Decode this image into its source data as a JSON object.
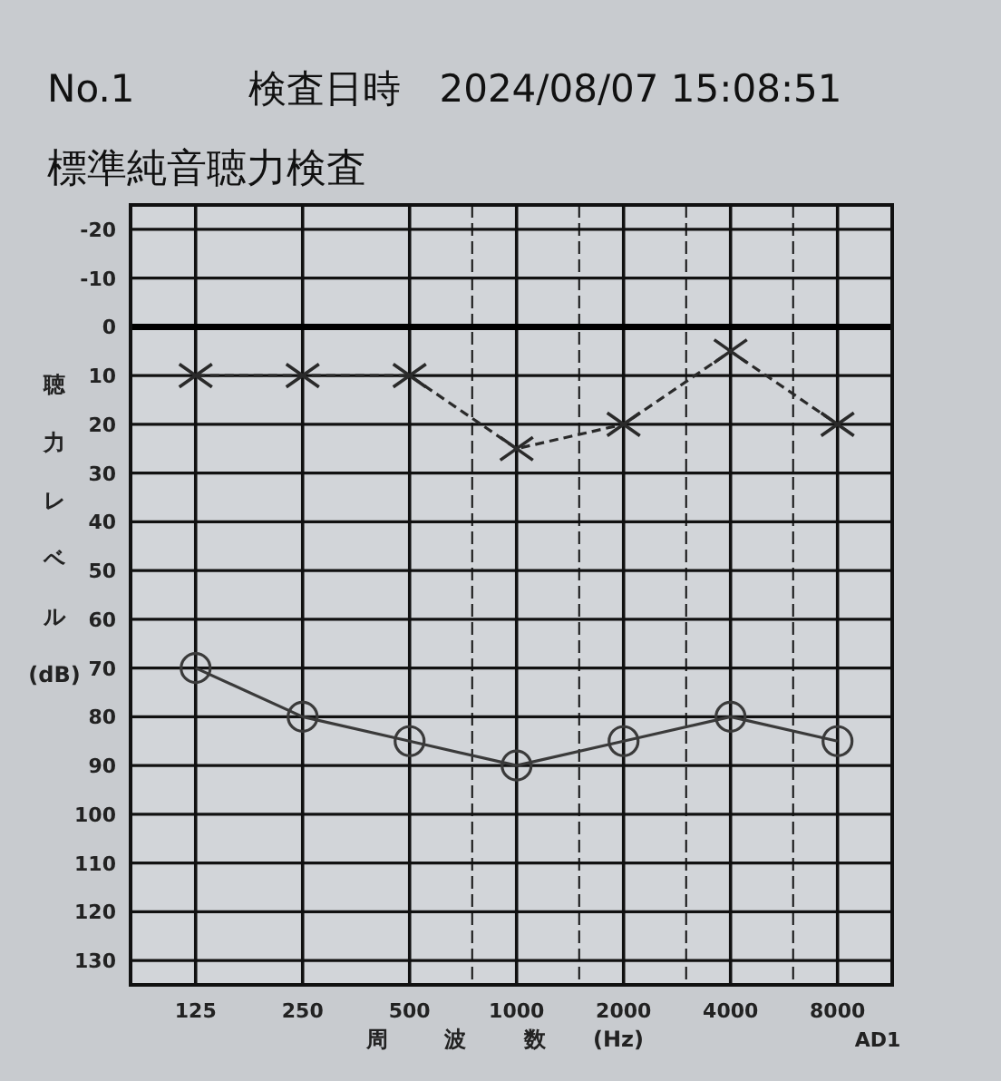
{
  "chart_data": {
    "type": "line",
    "subtitle": "No.1　　　検査日時　2024/08/07 15:08:51",
    "title": "標準純音聴力検査",
    "ylabel": "聴力レベル(dB)",
    "xlabel": "周波数 (Hz)",
    "annotations": [
      "AD1"
    ],
    "log": "x",
    "x": [
      125,
      250,
      500,
      1000,
      2000,
      4000,
      8000
    ],
    "series": [
      {
        "color": "#2a2a2a",
        "marker": "cross",
        "line_style": "dashed",
        "values": [
          10,
          10,
          10,
          25,
          20,
          5,
          20
        ]
      },
      {
        "color": "#3a3a3a",
        "marker": "circle",
        "line_style": "solid",
        "values": [
          70,
          80,
          85,
          90,
          85,
          80,
          85
        ]
      }
    ],
    "xlim": [
      82,
      11400
    ],
    "xticks": [
      125,
      250,
      500,
      {
        "value": 750,
        "label": null
      },
      1000,
      {
        "value": 1500,
        "label": null
      },
      2000,
      {
        "value": 3000,
        "label": null
      },
      4000,
      {
        "value": 6000,
        "label": null
      },
      8000
    ],
    "ylim": [
      135,
      -25
    ],
    "yticks": [
      -20,
      -10,
      0,
      10,
      20,
      30,
      40,
      50,
      60,
      70,
      80,
      90,
      100,
      110,
      120,
      130
    ],
    "ref_lines": [
      {
        "axis": "y",
        "value": 0,
        "color": "#000000"
      }
    ],
    "grid": true
  }
}
